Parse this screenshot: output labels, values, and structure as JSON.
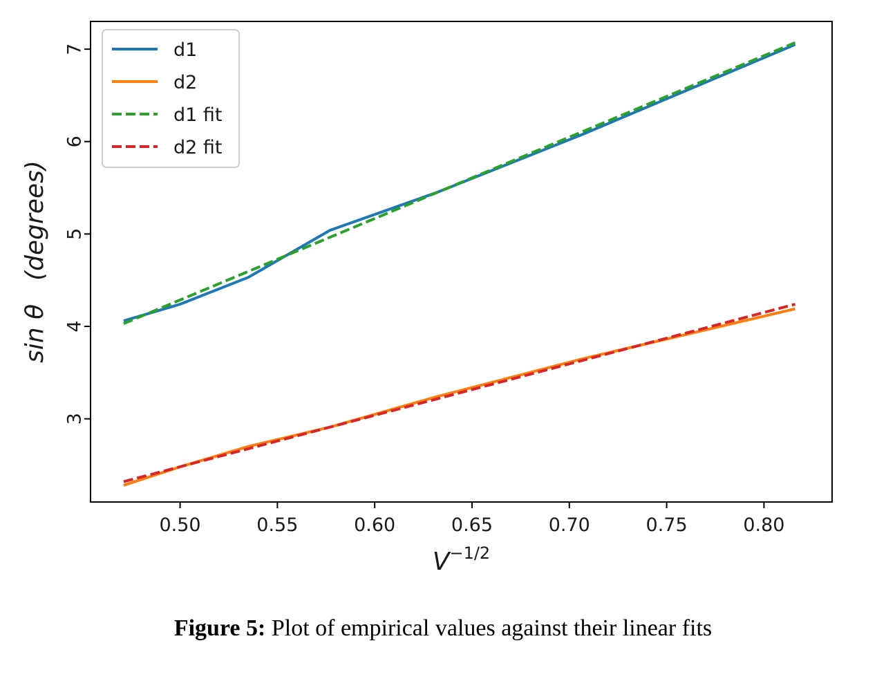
{
  "chart_data": {
    "type": "line",
    "xlabel": {
      "base": "V",
      "exponent": "−1/2"
    },
    "ylabel": {
      "part1": "sin θ",
      "part2": "(degrees)"
    },
    "xlim": [
      0.454,
      0.835
    ],
    "ylim": [
      2.1,
      7.3
    ],
    "xticks": [
      0.5,
      0.55,
      0.6,
      0.65,
      0.7,
      0.75,
      0.8
    ],
    "xtick_labels": [
      "0.50",
      "0.55",
      "0.60",
      "0.65",
      "0.70",
      "0.75",
      "0.80"
    ],
    "yticks": [
      3,
      4,
      5,
      6,
      7
    ],
    "ytick_labels": [
      "3",
      "4",
      "5",
      "6",
      "7"
    ],
    "grid": false,
    "legend_position": "top-left",
    "series": [
      {
        "name": "d1",
        "style": "solid",
        "color": "#1f77b4",
        "x": [
          0.471,
          0.5,
          0.535,
          0.577,
          0.632,
          0.707,
          0.816
        ],
        "y": [
          4.06,
          4.24,
          4.53,
          5.04,
          5.45,
          6.08,
          7.05
        ]
      },
      {
        "name": "d2",
        "style": "solid",
        "color": "#ff7f0e",
        "x": [
          0.471,
          0.5,
          0.535,
          0.577,
          0.632,
          0.707,
          0.816
        ],
        "y": [
          2.28,
          2.48,
          2.7,
          2.91,
          3.24,
          3.65,
          4.19
        ]
      },
      {
        "name": "d1 fit",
        "style": "dashed",
        "color": "#2ca02c",
        "x": [
          0.471,
          0.816
        ],
        "y": [
          4.03,
          7.07
        ]
      },
      {
        "name": "d2 fit",
        "style": "dashed",
        "color": "#d62728",
        "x": [
          0.471,
          0.816
        ],
        "y": [
          2.32,
          4.24
        ]
      }
    ]
  },
  "caption": {
    "label": "Figure 5:",
    "text": " Plot of empirical values against their linear fits"
  }
}
